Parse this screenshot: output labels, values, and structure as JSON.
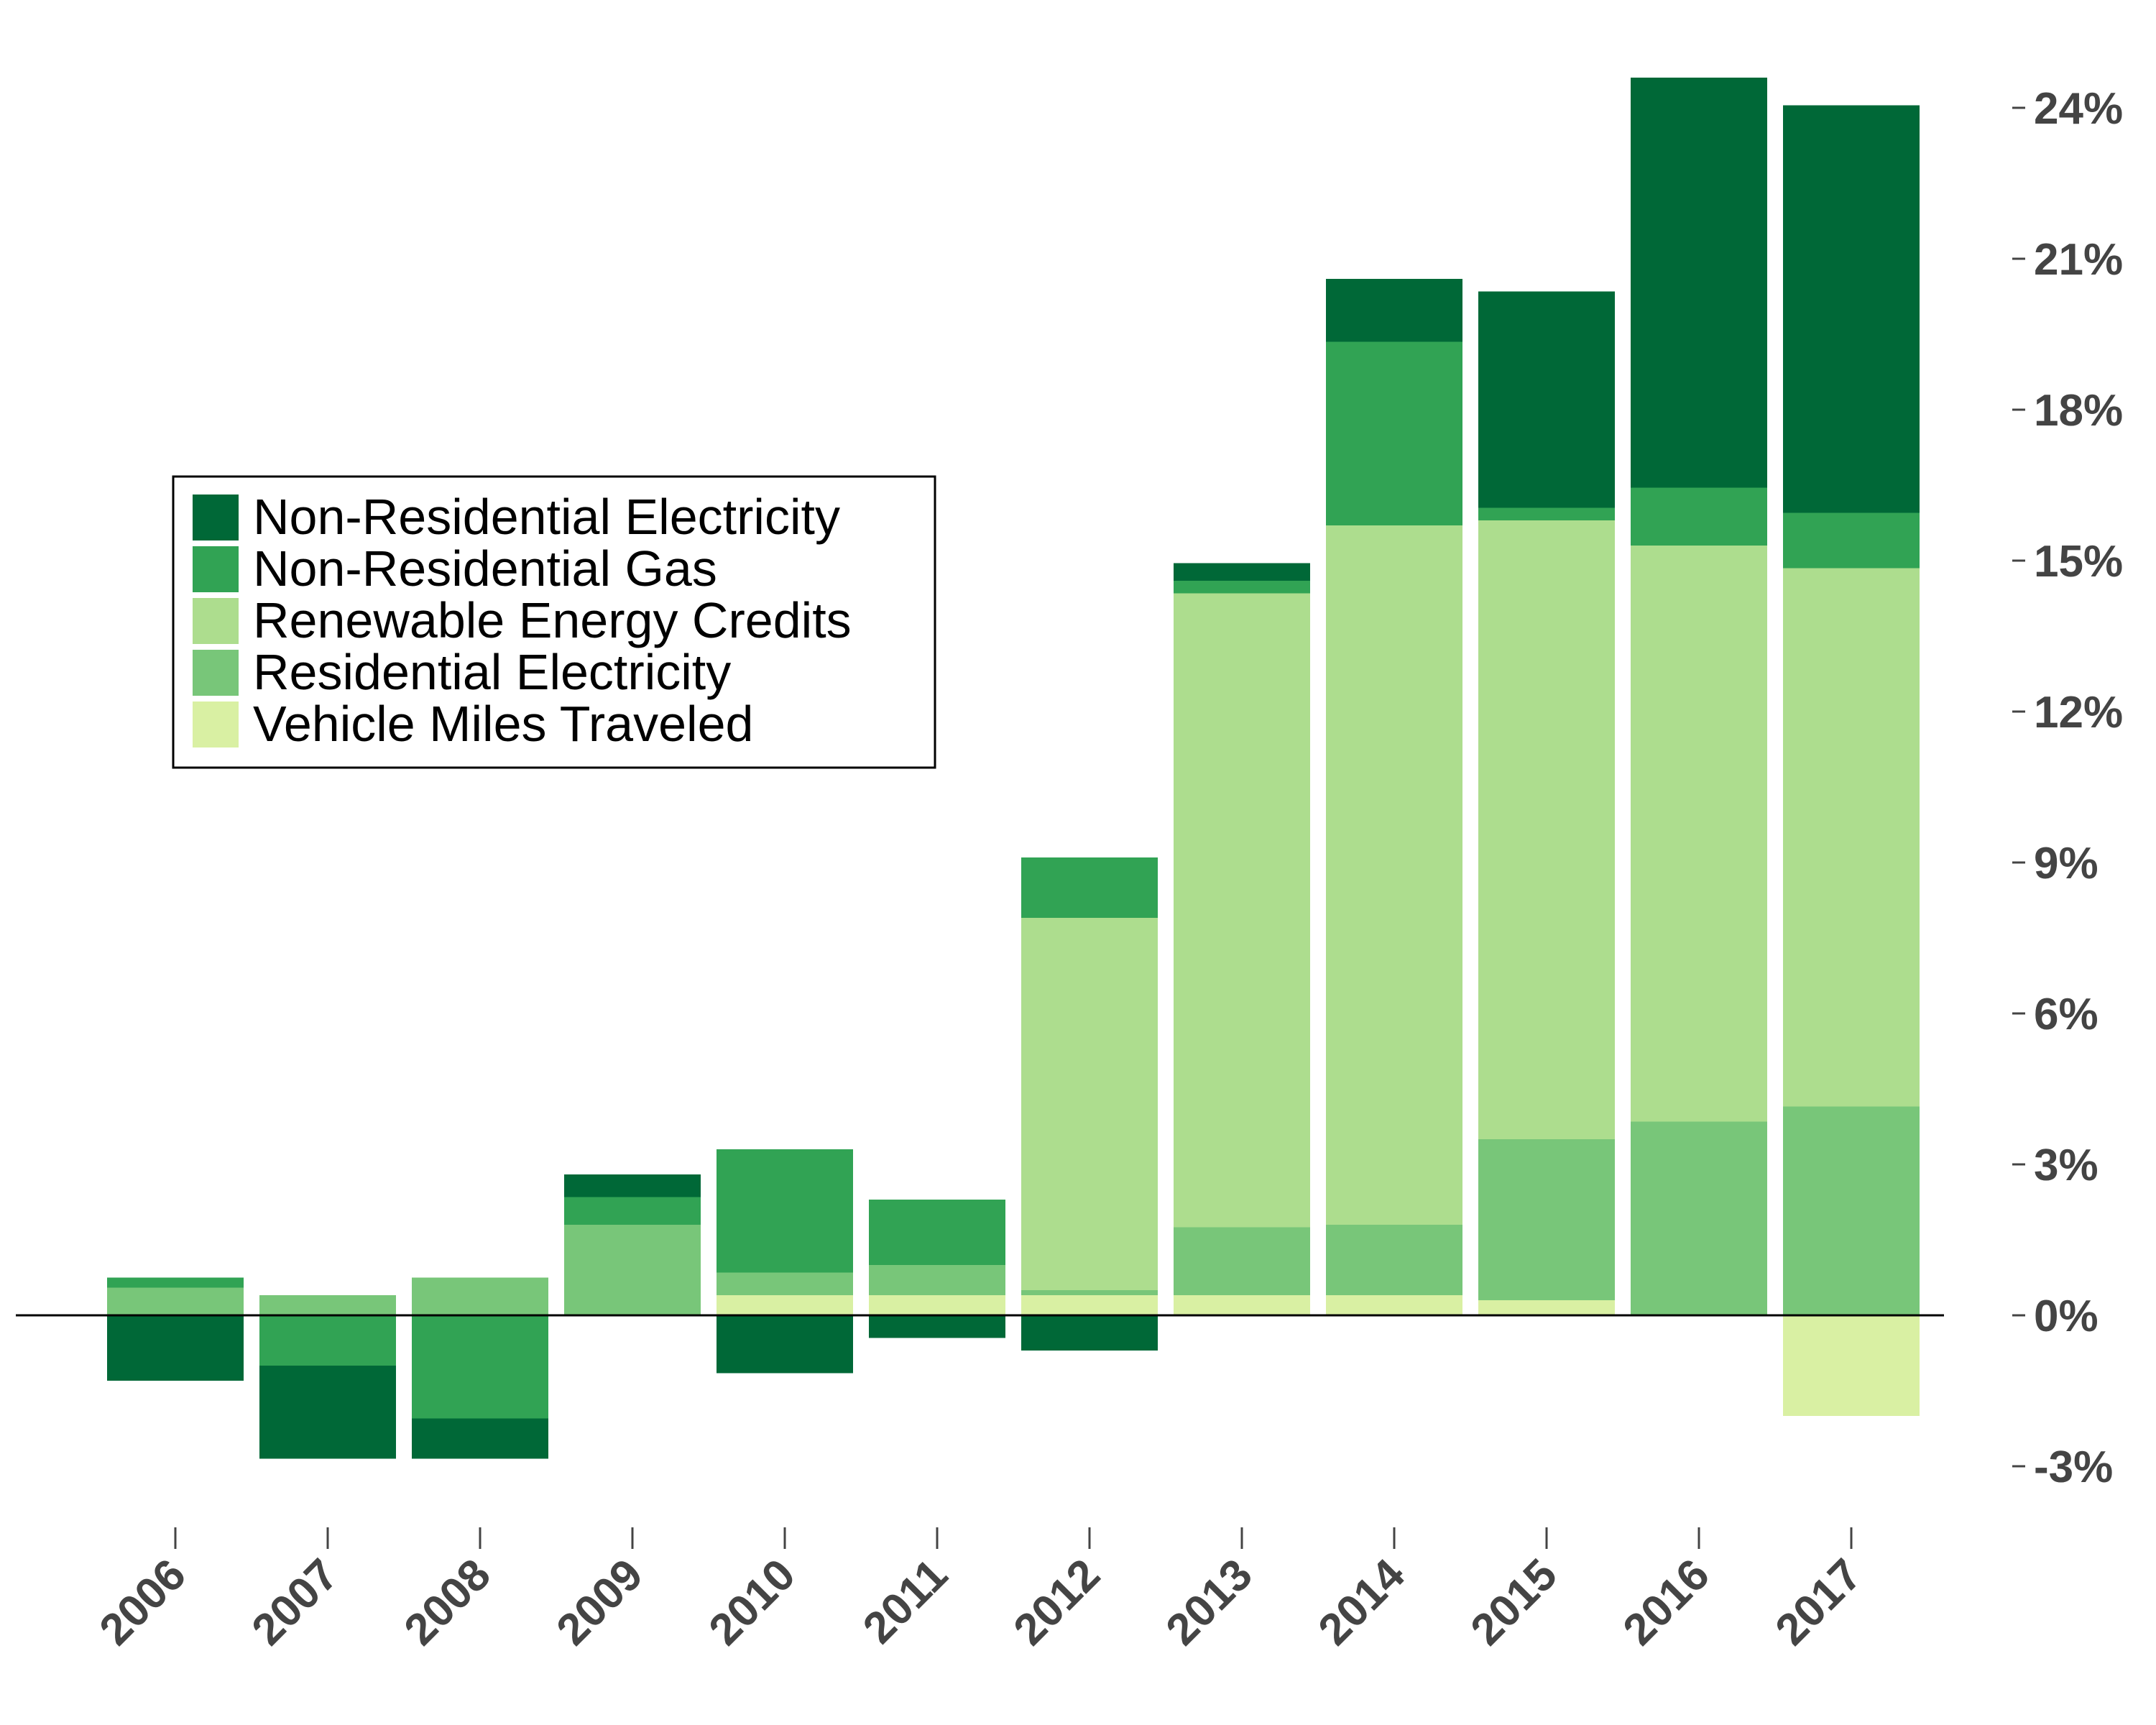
{
  "chart_data": {
    "type": "bar",
    "stacked": true,
    "categories": [
      "2006",
      "2007",
      "2008",
      "2009",
      "2010",
      "2011",
      "2012",
      "2013",
      "2014",
      "2015",
      "2016",
      "2017"
    ],
    "series": [
      {
        "name": "Vehicle Miles Traveled",
        "color": "#d9f0a3",
        "values": [
          0,
          0,
          0,
          0,
          0.4,
          0.4,
          0.4,
          0.4,
          0.4,
          0.3,
          0,
          -2.0
        ]
      },
      {
        "name": "Residential Electricity",
        "color": "#78c679",
        "values": [
          0.55,
          0.4,
          0.75,
          1.8,
          0.45,
          0.6,
          0.1,
          1.35,
          1.4,
          3.2,
          3.85,
          4.15
        ]
      },
      {
        "name": "Renewable Energy Credits",
        "color": "#addd8e",
        "values": [
          0,
          0,
          0,
          0,
          0,
          0,
          7.4,
          12.6,
          13.9,
          12.3,
          11.45,
          10.7
        ]
      },
      {
        "name": "Non-Residential Gas",
        "color": "#31a354",
        "values": [
          0.2,
          -1.0,
          -2.05,
          0.55,
          2.45,
          1.3,
          1.2,
          0.25,
          3.65,
          0.25,
          1.15,
          1.1
        ]
      },
      {
        "name": "Non-Residential Electricity",
        "color": "#006837",
        "values": [
          -1.3,
          -1.85,
          -0.8,
          0.45,
          -1.15,
          -0.45,
          -0.7,
          0.35,
          1.25,
          4.3,
          8.15,
          8.1
        ]
      }
    ],
    "legend_order": [
      "Non-Residential Electricity",
      "Non-Residential Gas",
      "Renewable Energy Credits",
      "Residential Electricity",
      "Vehicle Miles Traveled"
    ],
    "legend_position": "upper-left",
    "y_ticks": [
      -3,
      0,
      3,
      6,
      9,
      12,
      15,
      18,
      21,
      24
    ],
    "y_tick_labels": [
      "-3%",
      "0%",
      "3%",
      "6%",
      "9%",
      "12%",
      "15%",
      "18%",
      "21%",
      "24%"
    ],
    "y_axis_side": "right",
    "ylim": [
      -4.0,
      25.0
    ],
    "title": "",
    "xlabel": "",
    "ylabel": "",
    "grid": false
  }
}
